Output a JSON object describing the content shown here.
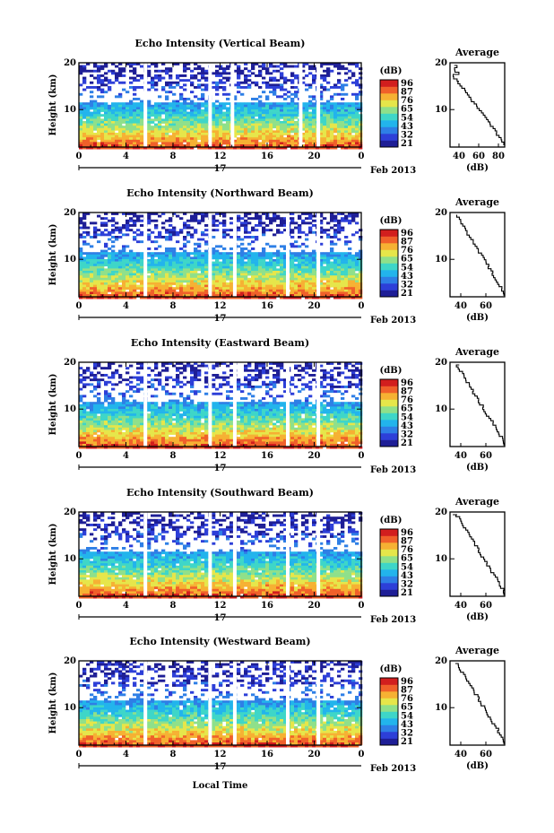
{
  "colors": {
    "colormap": [
      "#1e1e96",
      "#2d3fd8",
      "#2e7fe6",
      "#22b4ec",
      "#3ed6c8",
      "#8fe08a",
      "#e6e64a",
      "#f6b133",
      "#f0602a",
      "#d21e1e"
    ]
  },
  "chart_data": [
    {
      "type": "heatmap",
      "title": "Echo Intensity (Vertical Beam)",
      "ylabel": "Height (km)",
      "xticks": [
        "0",
        "4",
        "8",
        "12",
        "16",
        "20",
        "0"
      ],
      "yticks": [
        "10",
        "20"
      ],
      "xlim": [
        0,
        24
      ],
      "ylim": [
        2,
        20
      ],
      "colorbar_unit": "(dB)",
      "colorbar_ticks": [
        "96",
        "87",
        "76",
        "65",
        "54",
        "43",
        "32",
        "21"
      ],
      "date_center": "17",
      "date_label": "Feb 2013",
      "gaps_hours": [
        5.5,
        11.0,
        12.9,
        18.7,
        20.2
      ],
      "avg_top_km": 16,
      "avg_title": "Average",
      "avg_xlabel": "(dB)",
      "avg_xticks": [
        "40",
        "60",
        "80"
      ],
      "avg_yticks": [
        "10",
        "20"
      ]
    },
    {
      "type": "heatmap",
      "title": "Echo Intensity (Northward Beam)",
      "ylabel": "Height (km)",
      "xticks": [
        "0",
        "4",
        "8",
        "12",
        "16",
        "20",
        "0"
      ],
      "yticks": [
        "10",
        "20"
      ],
      "xlim": [
        0,
        24
      ],
      "ylim": [
        2,
        20
      ],
      "colorbar_unit": "(dB)",
      "colorbar_ticks": [
        "96",
        "87",
        "76",
        "65",
        "54",
        "43",
        "32",
        "21"
      ],
      "date_center": "17",
      "date_label": "Feb 2013",
      "gaps_hours": [
        5.5,
        11.0,
        13.1,
        17.6,
        20.2
      ],
      "avg_top_km": 19,
      "avg_title": "Average",
      "avg_xlabel": "(dB)",
      "avg_xticks": [
        "40",
        "60"
      ],
      "avg_yticks": [
        "10",
        "20"
      ]
    },
    {
      "type": "heatmap",
      "title": "Echo Intensity (Eastward Beam)",
      "ylabel": "Height (km)",
      "xticks": [
        "0",
        "4",
        "8",
        "12",
        "16",
        "20",
        "0"
      ],
      "yticks": [
        "10",
        "20"
      ],
      "xlim": [
        0,
        24
      ],
      "ylim": [
        2,
        20
      ],
      "colorbar_unit": "(dB)",
      "colorbar_ticks": [
        "96",
        "87",
        "76",
        "65",
        "54",
        "43",
        "32",
        "21"
      ],
      "date_center": "17",
      "date_label": "Feb 2013",
      "gaps_hours": [
        5.5,
        11.0,
        13.1,
        17.6,
        20.2
      ],
      "avg_top_km": 19,
      "avg_title": "Average",
      "avg_xlabel": "(dB)",
      "avg_xticks": [
        "40",
        "60"
      ],
      "avg_yticks": [
        "10",
        "20"
      ]
    },
    {
      "type": "heatmap",
      "title": "Echo Intensity (Southward Beam)",
      "ylabel": "Height (km)",
      "xticks": [
        "0",
        "4",
        "8",
        "12",
        "16",
        "20",
        "0"
      ],
      "yticks": [
        "10",
        "20"
      ],
      "xlim": [
        0,
        24
      ],
      "ylim": [
        2,
        20
      ],
      "colorbar_unit": "(dB)",
      "colorbar_ticks": [
        "96",
        "87",
        "76",
        "65",
        "54",
        "43",
        "32",
        "21"
      ],
      "date_center": "17",
      "date_label": "Feb 2013",
      "gaps_hours": [
        5.5,
        11.0,
        13.1,
        17.6,
        20.2
      ],
      "avg_top_km": 19,
      "avg_title": "Average",
      "avg_xlabel": "(dB)",
      "avg_xticks": [
        "40",
        "60"
      ],
      "avg_yticks": [
        "10",
        "20"
      ]
    },
    {
      "type": "heatmap",
      "title": "Echo Intensity (Westward Beam)",
      "ylabel": "Height (km)",
      "xticks": [
        "0",
        "4",
        "8",
        "12",
        "16",
        "20",
        "0"
      ],
      "yticks": [
        "10",
        "20"
      ],
      "xlim": [
        0,
        24
      ],
      "ylim": [
        2,
        20
      ],
      "colorbar_unit": "(dB)",
      "colorbar_ticks": [
        "96",
        "87",
        "76",
        "65",
        "54",
        "43",
        "32",
        "21"
      ],
      "date_center": "17",
      "date_label": "Feb 2013",
      "gaps_hours": [
        5.5,
        11.0,
        13.1,
        17.6,
        20.2
      ],
      "avg_top_km": 19,
      "avg_title": "Average",
      "avg_xlabel": "(dB)",
      "avg_xticks": [
        "40",
        "60"
      ],
      "avg_yticks": [
        "10",
        "20"
      ]
    }
  ],
  "footer": {
    "xlabel": "Local Time"
  }
}
